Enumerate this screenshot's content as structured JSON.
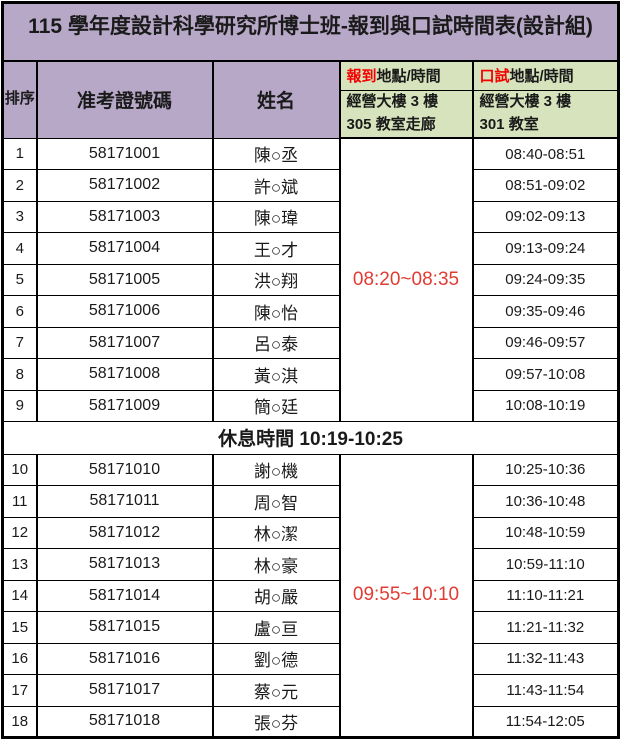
{
  "title": "115 學年度設計科學研究所博士班-報到與口試時間表(設計組)",
  "columns": {
    "order": "排序",
    "ticket": "准考證號碼",
    "name": "姓名",
    "checkin_prefix": "報到",
    "checkin_suffix": "地點/時間",
    "oral_prefix": "口試",
    "oral_suffix": "地點/時間",
    "checkin_location_line1": "經營大樓 3 樓",
    "checkin_location_line2": "305 教室走廊",
    "oral_location_line1": "經營大樓 3 樓",
    "oral_location_line2": "301 教室"
  },
  "groups": [
    {
      "checkin_time": "08:20~08:35",
      "rows": [
        {
          "order": "1",
          "ticket": "58171001",
          "name": "陳○丞",
          "oral_time": "08:40-08:51"
        },
        {
          "order": "2",
          "ticket": "58171002",
          "name": "許○斌",
          "oral_time": "08:51-09:02"
        },
        {
          "order": "3",
          "ticket": "58171003",
          "name": "陳○瑋",
          "oral_time": "09:02-09:13"
        },
        {
          "order": "4",
          "ticket": "58171004",
          "name": "王○才",
          "oral_time": "09:13-09:24"
        },
        {
          "order": "5",
          "ticket": "58171005",
          "name": "洪○翔",
          "oral_time": "09:24-09:35"
        },
        {
          "order": "6",
          "ticket": "58171006",
          "name": "陳○怡",
          "oral_time": "09:35-09:46"
        },
        {
          "order": "7",
          "ticket": "58171007",
          "name": "呂○泰",
          "oral_time": "09:46-09:57"
        },
        {
          "order": "8",
          "ticket": "58171008",
          "name": "黃○淇",
          "oral_time": "09:57-10:08"
        },
        {
          "order": "9",
          "ticket": "58171009",
          "name": "簡○廷",
          "oral_time": "10:08-10:19"
        }
      ]
    },
    {
      "checkin_time": "09:55~10:10",
      "rows": [
        {
          "order": "10",
          "ticket": "58171010",
          "name": "謝○機",
          "oral_time": "10:25-10:36"
        },
        {
          "order": "11",
          "ticket": "58171011",
          "name": "周○智",
          "oral_time": "10:36-10:48"
        },
        {
          "order": "12",
          "ticket": "58171012",
          "name": "林○潔",
          "oral_time": "10:48-10:59"
        },
        {
          "order": "13",
          "ticket": "58171013",
          "name": "林○豪",
          "oral_time": "10:59-11:10"
        },
        {
          "order": "14",
          "ticket": "58171014",
          "name": "胡○嚴",
          "oral_time": "11:10-11:21"
        },
        {
          "order": "15",
          "ticket": "58171015",
          "name": "盧○亘",
          "oral_time": "11:21-11:32"
        },
        {
          "order": "16",
          "ticket": "58171016",
          "name": "劉○德",
          "oral_time": "11:32-11:43"
        },
        {
          "order": "17",
          "ticket": "58171017",
          "name": "蔡○元",
          "oral_time": "11:43-11:54"
        },
        {
          "order": "18",
          "ticket": "58171018",
          "name": "張○芬",
          "oral_time": "11:54-12:05"
        }
      ]
    }
  ],
  "break_label": "休息時間 10:19-10:25",
  "colors": {
    "purple": "#b7a8c8",
    "green": "#d6e3bc",
    "red": "#f40000",
    "time-red": "#e03c34"
  }
}
